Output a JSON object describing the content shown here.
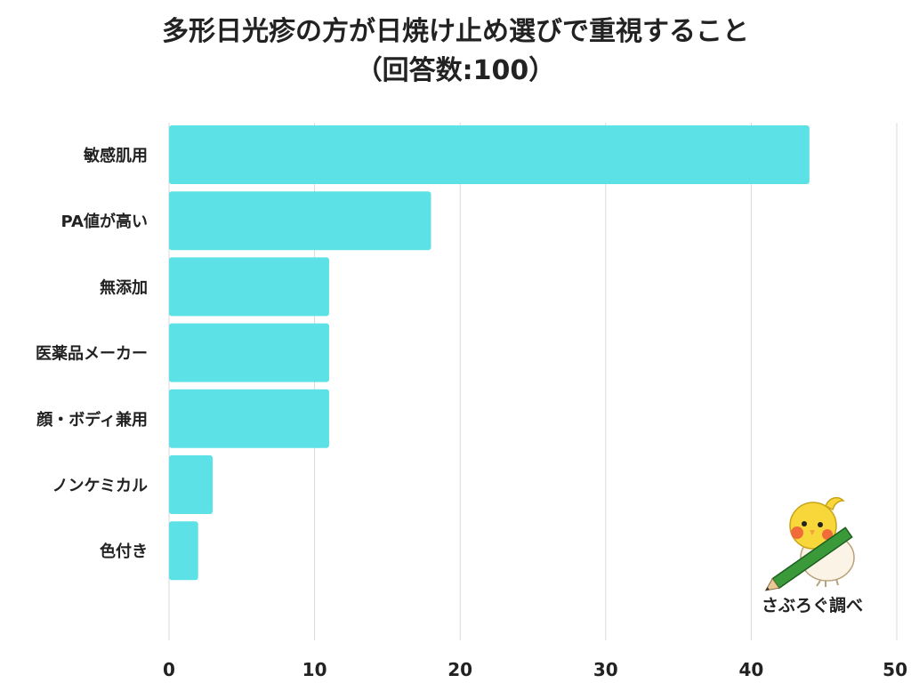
{
  "title_line1": "多形日光疹の方が日焼け止め選びで重視すること",
  "title_line2": "（回答数:100）",
  "credit": "さぶろぐ調べ",
  "colors": {
    "bar": "#5ce1e6",
    "grid": "#d9d9d9"
  },
  "chart_data": {
    "type": "bar",
    "orientation": "horizontal",
    "title": "多形日光疹の方が日焼け止め選びで重視すること（回答数:100）",
    "categories": [
      "敏感肌用",
      "PA値が高い",
      "無添加",
      "医薬品メーカー",
      "顔・ボディ兼用",
      "ノンケミカル",
      "色付き"
    ],
    "values": [
      44,
      18,
      11,
      11,
      11,
      3,
      2
    ],
    "xlim": [
      0,
      50
    ],
    "xticks": [
      "0",
      "10",
      "20",
      "30",
      "40",
      "50"
    ],
    "grid": "vertical",
    "legend": "none"
  }
}
